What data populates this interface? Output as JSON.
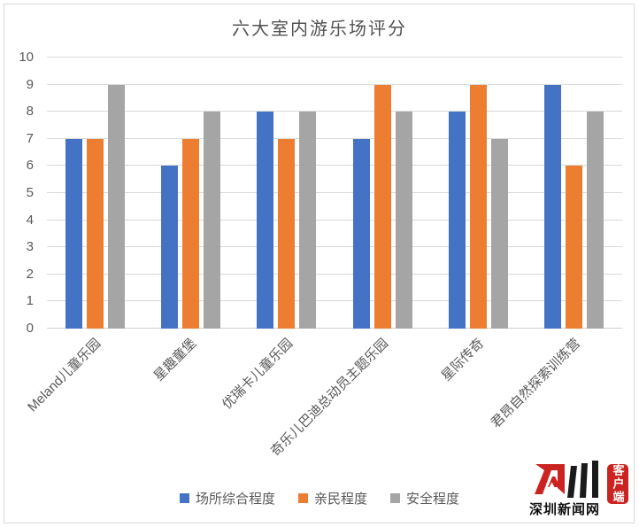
{
  "chart_data": {
    "type": "bar",
    "title": "六大室内游乐场评分",
    "categories": [
      "Meland儿童乐园",
      "星趣童堡",
      "优瑞卡儿童乐园",
      "奇乐儿巴迪总动员主题乐园",
      "星际传奇",
      "君昂自然探索训练营"
    ],
    "series": [
      {
        "name": "场所综合程度",
        "color": "#4472C4",
        "values": [
          7,
          6,
          8,
          7,
          8,
          9
        ]
      },
      {
        "name": "亲民程度",
        "color": "#ED7D31",
        "values": [
          7,
          7,
          7,
          9,
          9,
          6
        ]
      },
      {
        "name": "安全程度",
        "color": "#A5A5A5",
        "values": [
          9,
          8,
          8,
          8,
          7,
          8
        ]
      }
    ],
    "xlabel": "",
    "ylabel": "",
    "ylim": [
      0,
      10
    ],
    "ytick_step": 1,
    "grid": true,
    "legend_position": "bottom",
    "styles": {
      "grid_color": "#D9D9D9",
      "axis_text_color": "#595959",
      "title_color": "#535353"
    }
  },
  "watermark": {
    "site_name": "深圳新闻网",
    "badge": "客户端",
    "brand_red": "#CB2420",
    "mark_black": "#1A1A1A"
  }
}
